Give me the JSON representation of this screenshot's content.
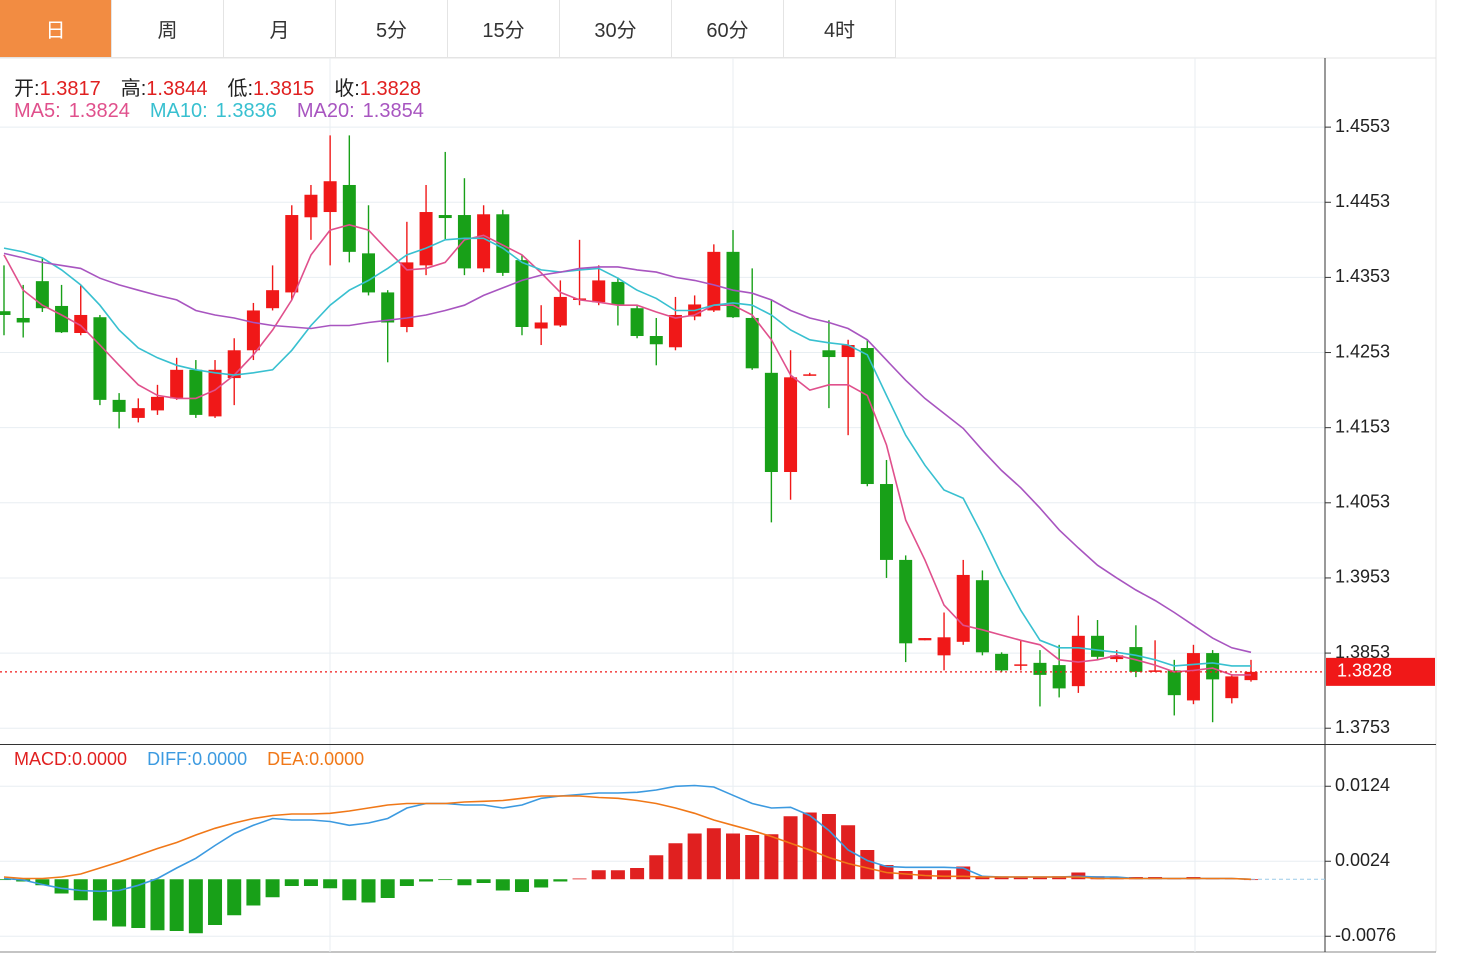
{
  "tabs": [
    "日",
    "周",
    "月",
    "5分",
    "15分",
    "30分",
    "60分",
    "4时"
  ],
  "active_tab": 0,
  "chart_data": [
    {
      "type": "candlestick",
      "up_color": "#f01818",
      "down_color": "#18a018",
      "labels": {
        "open": "开:",
        "high": "高:",
        "low": "低:",
        "close": "收:"
      },
      "open": [
        1.4308,
        1.4299,
        1.4348,
        1.4315,
        1.4279,
        1.43,
        1.419,
        1.4166,
        1.4176,
        1.4192,
        1.423,
        1.4168,
        1.4219,
        1.4256,
        1.4312,
        1.4333,
        1.4433,
        1.444,
        1.4476,
        1.4385,
        1.4333,
        1.4287,
        1.4369,
        1.4436,
        1.4436,
        1.4365,
        1.4437,
        1.4376,
        1.4285,
        1.4289,
        1.4323,
        1.432,
        1.4347,
        1.4312,
        1.4275,
        1.426,
        1.4301,
        1.4309,
        1.4387,
        1.4299,
        1.4226,
        1.4094,
        1.4223,
        1.4256,
        1.4247,
        1.4259,
        1.4078,
        1.3977,
        1.387,
        1.385,
        1.3868,
        1.395,
        1.3852,
        1.3837,
        1.384,
        1.3837,
        1.3809,
        1.3876,
        1.3845,
        1.3861,
        1.3828,
        1.383,
        1.379,
        1.3853,
        1.3793,
        1.3817
      ],
      "high": [
        1.4369,
        1.4343,
        1.4379,
        1.4343,
        1.4343,
        1.4303,
        1.4199,
        1.4192,
        1.421,
        1.4246,
        1.4243,
        1.4243,
        1.4272,
        1.4319,
        1.4369,
        1.4449,
        1.4476,
        1.4542,
        1.4542,
        1.4449,
        1.4336,
        1.4427,
        1.4476,
        1.452,
        1.4485,
        1.4449,
        1.4443,
        1.4383,
        1.4316,
        1.4349,
        1.4403,
        1.4369,
        1.4353,
        1.4316,
        1.4299,
        1.4327,
        1.4329,
        1.4397,
        1.4416,
        1.4365,
        1.4323,
        1.4256,
        1.4226,
        1.4296,
        1.427,
        1.427,
        1.411,
        1.3983,
        1.3873,
        1.3907,
        1.3977,
        1.3963,
        1.3854,
        1.387,
        1.3857,
        1.3864,
        1.3903,
        1.3897,
        1.3857,
        1.389,
        1.387,
        1.3844,
        1.3864,
        1.3857,
        1.3825,
        1.3844
      ],
      "low": [
        1.4276,
        1.4273,
        1.4307,
        1.4279,
        1.4276,
        1.4183,
        1.4152,
        1.416,
        1.417,
        1.419,
        1.4166,
        1.4166,
        1.4183,
        1.4243,
        1.4309,
        1.4323,
        1.4403,
        1.4369,
        1.4373,
        1.4329,
        1.424,
        1.428,
        1.4356,
        1.4403,
        1.4356,
        1.436,
        1.4355,
        1.4276,
        1.4263,
        1.4287,
        1.4316,
        1.4316,
        1.4289,
        1.4272,
        1.4236,
        1.4256,
        1.4296,
        1.4307,
        1.4299,
        1.423,
        1.4027,
        1.4057,
        1.4222,
        1.4179,
        1.4143,
        1.4075,
        1.3953,
        1.3841,
        1.387,
        1.383,
        1.3864,
        1.385,
        1.3828,
        1.383,
        1.3782,
        1.3794,
        1.38,
        1.3844,
        1.3841,
        1.3821,
        1.3828,
        1.377,
        1.3785,
        1.3761,
        1.3786,
        1.3815
      ],
      "close": [
        1.4303,
        1.4293,
        1.4312,
        1.428,
        1.4303,
        1.419,
        1.4174,
        1.4179,
        1.4194,
        1.423,
        1.417,
        1.423,
        1.4256,
        1.4309,
        1.4336,
        1.4436,
        1.4463,
        1.4481,
        1.4387,
        1.4333,
        1.4293,
        1.4373,
        1.444,
        1.4432,
        1.4365,
        1.4437,
        1.4359,
        1.4287,
        1.4293,
        1.4327,
        1.4325,
        1.4349,
        1.4317,
        1.4275,
        1.4264,
        1.4303,
        1.4317,
        1.4387,
        1.43,
        1.4232,
        1.4094,
        1.422,
        1.4224,
        1.4247,
        1.4263,
        1.4078,
        1.3977,
        1.3866,
        1.3873,
        1.3874,
        1.3957,
        1.3854,
        1.383,
        1.3838,
        1.3824,
        1.3806,
        1.3876,
        1.3848,
        1.385,
        1.3828,
        1.383,
        1.3797,
        1.3853,
        1.3818,
        1.3822,
        1.3828
      ],
      "series": [
        {
          "name": "MA5:",
          "color": "#e0508c",
          "values": [
            1.4383,
            1.4336,
            1.4316,
            1.4303,
            1.4289,
            1.4263,
            1.4236,
            1.421,
            1.4196,
            1.4192,
            1.4192,
            1.4203,
            1.4223,
            1.425,
            1.4283,
            1.4323,
            1.4383,
            1.4416,
            1.4423,
            1.4416,
            1.4389,
            1.4363,
            1.4365,
            1.4373,
            1.4403,
            1.4409,
            1.4396,
            1.4383,
            1.4359,
            1.4333,
            1.4323,
            1.432,
            1.4316,
            1.4316,
            1.4307,
            1.4299,
            1.4303,
            1.4316,
            1.4316,
            1.4303,
            1.427,
            1.4223,
            1.4203,
            1.421,
            1.421,
            1.4196,
            1.413,
            1.403,
            1.3977,
            1.3917,
            1.389,
            1.3884,
            1.3877,
            1.387,
            1.3864,
            1.3844,
            1.3841,
            1.3844,
            1.385,
            1.3844,
            1.3837,
            1.3828,
            1.383,
            1.3833,
            1.3824,
            1.3824
          ]
        },
        {
          "name": "MA10:",
          "color": "#38c0d0",
          "values": [
            1.4392,
            1.4387,
            1.4379,
            1.4363,
            1.4343,
            1.4316,
            1.4283,
            1.4259,
            1.4246,
            1.4236,
            1.423,
            1.4226,
            1.4223,
            1.4226,
            1.423,
            1.4256,
            1.4289,
            1.4316,
            1.4336,
            1.4349,
            1.4365,
            1.4383,
            1.4392,
            1.4403,
            1.4405,
            1.4405,
            1.4392,
            1.4373,
            1.4363,
            1.436,
            1.4363,
            1.4365,
            1.4352,
            1.4336,
            1.4325,
            1.4309,
            1.4309,
            1.4316,
            1.4319,
            1.4316,
            1.4303,
            1.4283,
            1.427,
            1.4266,
            1.4263,
            1.425,
            1.4196,
            1.4143,
            1.4103,
            1.407,
            1.4059,
            1.401,
            1.3957,
            1.391,
            1.387,
            1.386,
            1.386,
            1.3857,
            1.3854,
            1.385,
            1.3844,
            1.3836,
            1.3838,
            1.384,
            1.3836,
            1.3836
          ]
        },
        {
          "name": "MA20:",
          "color": "#a855c0",
          "values": [
            1.4385,
            1.4379,
            1.4373,
            1.4369,
            1.4365,
            1.4352,
            1.4343,
            1.4336,
            1.4329,
            1.4323,
            1.4309,
            1.4303,
            1.4299,
            1.4293,
            1.4289,
            1.4287,
            1.4285,
            1.4289,
            1.4289,
            1.4293,
            1.4296,
            1.4299,
            1.4303,
            1.4309,
            1.4316,
            1.4329,
            1.4339,
            1.4349,
            1.4356,
            1.436,
            1.4365,
            1.4367,
            1.4367,
            1.4363,
            1.436,
            1.4353,
            1.4349,
            1.4343,
            1.4336,
            1.4332,
            1.4323,
            1.4309,
            1.4299,
            1.4293,
            1.4285,
            1.427,
            1.4243,
            1.4216,
            1.4192,
            1.4172,
            1.4152,
            1.4123,
            1.4096,
            1.4073,
            1.4046,
            1.4017,
            1.3993,
            1.397,
            1.3953,
            1.3937,
            1.3923,
            1.3907,
            1.389,
            1.3873,
            1.386,
            1.3854
          ]
        }
      ],
      "ylim": [
        1.3732,
        1.4645
      ],
      "yticks": [
        1.3753,
        1.3853,
        1.3953,
        1.4053,
        1.4153,
        1.4253,
        1.4353,
        1.4453,
        1.4553
      ],
      "grid": true
    },
    {
      "type": "macd",
      "series": [
        {
          "name": "MACD:",
          "color": "#e02020",
          "down_color": "#18a018",
          "kind": "bar",
          "values": [
            -0.0001,
            -0.0003,
            -0.0008,
            -0.0019,
            -0.0028,
            -0.0055,
            -0.0063,
            -0.0065,
            -0.0068,
            -0.0069,
            -0.0072,
            -0.0061,
            -0.0048,
            -0.0035,
            -0.0024,
            -0.0009,
            -0.0009,
            -0.0012,
            -0.0028,
            -0.0031,
            -0.0025,
            -0.0009,
            -0.0003,
            -0.0001,
            -0.0008,
            -0.0005,
            -0.0015,
            -0.0017,
            -0.0011,
            -0.0003,
            0.0001,
            0.0012,
            0.0012,
            0.0015,
            0.0032,
            0.0048,
            0.0061,
            0.0068,
            0.0061,
            0.0059,
            0.006,
            0.0084,
            0.0089,
            0.0087,
            0.0072,
            0.0039,
            0.0019,
            0.0011,
            0.0012,
            0.0012,
            0.0017,
            0.0004,
            0.0003,
            0.0003,
            0.0003,
            0.0004,
            0.0009,
            0.0004,
            0.0003,
            0.0003,
            0.0003,
            0.0001,
            0.0003,
            0.0001,
            0.0001,
            0
          ]
        },
        {
          "name": "DIFF:",
          "color": "#3c9ae0",
          "kind": "line",
          "values": [
            0.0001,
            -0.0001,
            -0.0007,
            -0.0012,
            -0.0015,
            -0.0016,
            -0.0015,
            -0.0008,
            0.0001,
            0.0015,
            0.0028,
            0.0045,
            0.0061,
            0.0072,
            0.0081,
            0.0079,
            0.0079,
            0.0077,
            0.0072,
            0.0075,
            0.0081,
            0.0095,
            0.0101,
            0.0101,
            0.0099,
            0.0099,
            0.0095,
            0.0099,
            0.0108,
            0.0111,
            0.0113,
            0.0115,
            0.0115,
            0.0116,
            0.0119,
            0.0124,
            0.0125,
            0.0123,
            0.0112,
            0.0101,
            0.0095,
            0.0096,
            0.0085,
            0.0065,
            0.0039,
            0.0025,
            0.0017,
            0.0016,
            0.0016,
            0.0016,
            0.0015,
            0.0004,
            0.0003,
            0.0003,
            0.0003,
            0.0003,
            0.0004,
            0.0003,
            0.0003,
            0.0001,
            0.0001,
            0.0001,
            0.0001,
            0.0001,
            0.0001,
            0
          ]
        },
        {
          "name": "DEA:",
          "color": "#f07818",
          "kind": "line",
          "values": [
            0.0003,
            0.0001,
            0.0001,
            0.0003,
            0.0007,
            0.0015,
            0.0023,
            0.0032,
            0.0041,
            0.0049,
            0.0059,
            0.0068,
            0.0075,
            0.0081,
            0.0085,
            0.0087,
            0.0087,
            0.0088,
            0.0091,
            0.0095,
            0.0099,
            0.0101,
            0.0101,
            0.0101,
            0.0103,
            0.0104,
            0.0105,
            0.0108,
            0.0111,
            0.0111,
            0.0111,
            0.0109,
            0.0108,
            0.0105,
            0.0101,
            0.0095,
            0.0088,
            0.0079,
            0.0072,
            0.0065,
            0.0057,
            0.0048,
            0.0039,
            0.0029,
            0.0021,
            0.0015,
            0.0009,
            0.0007,
            0.0005,
            0.0004,
            0.0004,
            0.0003,
            0.0003,
            0.0003,
            0.0003,
            0.0003,
            0.0003,
            0.0001,
            0.0001,
            0.0001,
            0.0001,
            0.0001,
            0.0001,
            0.0001,
            0.0001,
            0
          ]
        }
      ],
      "readout_labels": [
        "0.0000",
        "0.0000",
        "0.0000"
      ],
      "ylim": [
        -0.0097,
        0.0179
      ],
      "yticks": [
        -0.0076,
        0.0024,
        0.0124
      ],
      "grid": true
    }
  ]
}
